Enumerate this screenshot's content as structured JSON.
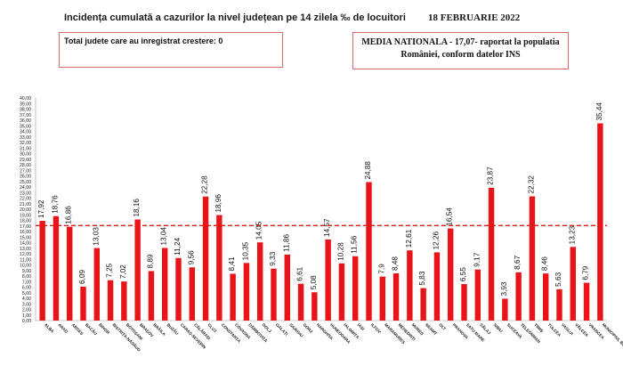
{
  "header": {
    "title": "Incidența cumulată a cazurilor la nivel județean pe 14 zilela ‰ de locuitori",
    "date": "18 FEBRUARIE 2022"
  },
  "info_left": "Total judete care au inregistrat crestere: 0",
  "info_right": {
    "line1": "MEDIA NATIONALA - 17,07-  raportat la populatia",
    "line2": "României, conform datelor INS"
  },
  "colors": {
    "bar": "#e8141a",
    "reference_line": "#e8141a",
    "box_border": "#d86a6a"
  },
  "chart_data": {
    "type": "bar",
    "categories": [
      "ALBA",
      "ARAD",
      "ARGEȘ",
      "BACĂU",
      "BIHOR",
      "BISTRIȚA-NĂSĂUD",
      "BOTOȘANI",
      "BRAȘOV",
      "BRĂILA",
      "BUZĂU",
      "CARAȘ-SEVERIN",
      "CĂLĂRAȘI",
      "CLUJ",
      "CONSTANȚA",
      "COVASNA",
      "DÂMBOVIȚA",
      "DOLJ",
      "GALAȚI",
      "GIURGIU",
      "GORJ",
      "HARGHITA",
      "HUNEDOARA",
      "IALOMIȚA",
      "IAȘI",
      "ILFOV",
      "MARAMUREȘ",
      "MEHEDINȚI",
      "MUREȘ",
      "NEAMȚ",
      "OLT",
      "PRAHOVA",
      "SATU MARE",
      "SĂLAJ",
      "SIBIU",
      "SUCEAVA",
      "TELEORMAN",
      "TIMIȘ",
      "TULCEA",
      "VASLUI",
      "VÂLCEA",
      "VRANCEA",
      "MUNICIPIUL BUCUREȘTI"
    ],
    "values": [
      17.92,
      18.76,
      16.86,
      6.09,
      13.03,
      7.25,
      7.02,
      18.16,
      8.89,
      13.04,
      11.24,
      9.56,
      22.28,
      18.96,
      8.41,
      10.35,
      14.05,
      9.33,
      11.86,
      6.61,
      5.08,
      14.57,
      10.28,
      11.56,
      24.88,
      7.9,
      8.48,
      12.61,
      5.83,
      12.26,
      16.54,
      6.55,
      9.17,
      23.87,
      3.93,
      8.67,
      22.32,
      8.46,
      5.63,
      13.23,
      6.79,
      35.44
    ],
    "value_labels": [
      "17,92",
      "18,76",
      "16,86",
      "6,09",
      "13,03",
      "7,25",
      "7,02",
      "18,16",
      "8,89",
      "13,04",
      "11,24",
      "9,56",
      "22,28",
      "18,96",
      "8,41",
      "10,35",
      "14,05",
      "9,33",
      "11,86",
      "6,61",
      "5,08",
      "14,57",
      "10,28",
      "11,56",
      "24,88",
      "7,9",
      "8,48",
      "12,61",
      "5,83",
      "12,26",
      "16,54",
      "6,55",
      "9,17",
      "23,87",
      "3,93",
      "8,67",
      "22,32",
      "8,46",
      "5,63",
      "13,23",
      "6,79",
      "35,44"
    ],
    "ylim": [
      0,
      40
    ],
    "ytick_step": 1,
    "ytick_labels": [
      "0,00",
      "1,00",
      "2,00",
      "3,00",
      "4,00",
      "5,00",
      "6,00",
      "7,00",
      "8,00",
      "9,00",
      "10,00",
      "11,00",
      "12,00",
      "13,00",
      "14,00",
      "15,00",
      "16,00",
      "17,00",
      "18,00",
      "19,00",
      "20,00",
      "21,00",
      "22,00",
      "23,00",
      "24,00",
      "25,00",
      "26,00",
      "27,00",
      "28,00",
      "29,00",
      "30,00",
      "31,00",
      "32,00",
      "33,00",
      "34,00",
      "35,00",
      "36,00",
      "37,00",
      "38,00",
      "39,00",
      "40,00"
    ],
    "reference_value": 17.07,
    "grid": false,
    "legend": "none"
  }
}
